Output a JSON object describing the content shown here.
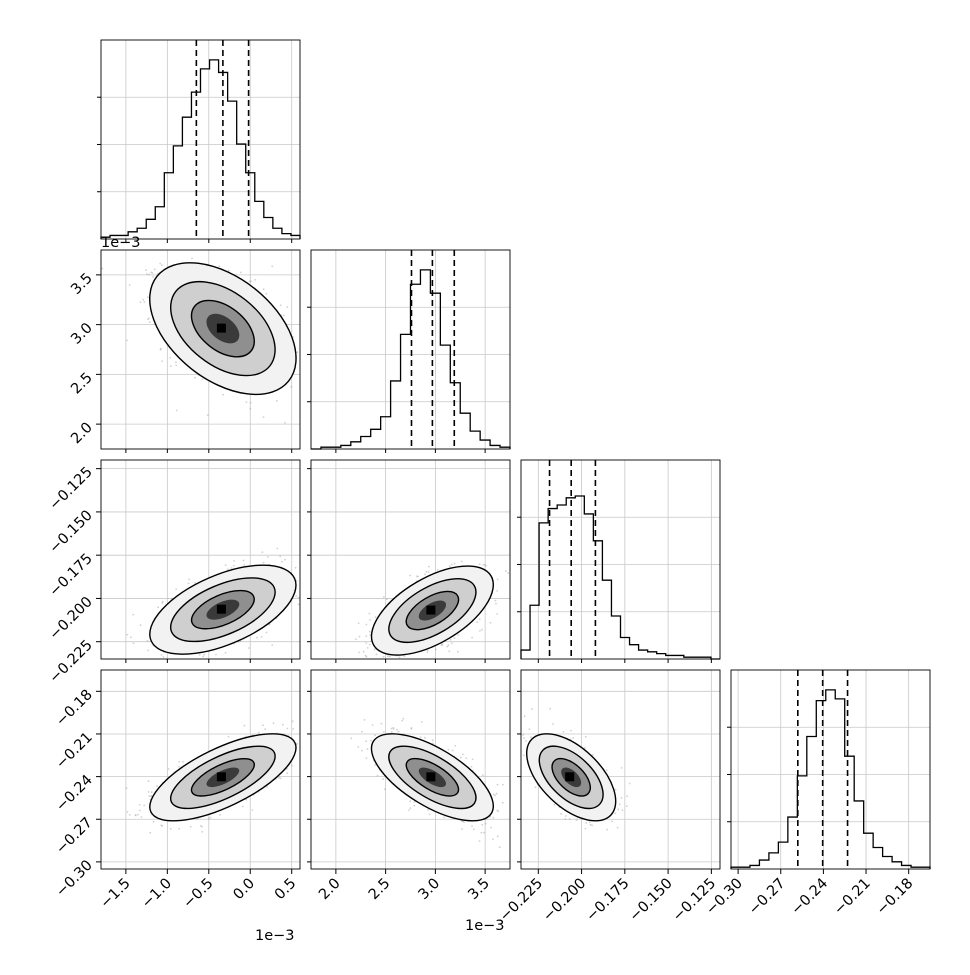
{
  "figure": {
    "type": "corner-plot"
  },
  "chart_data": {
    "type": "corner",
    "n_params": 4,
    "params": [
      {
        "range": [
          -0.0018,
          0.0006
        ],
        "ticks": [
          -0.0015,
          -0.001,
          -0.0005,
          0.0,
          0.0005
        ],
        "tick_labels": [
          "−1.5",
          "−1.0",
          "−0.5",
          "0.0",
          "0.5"
        ],
        "offset_label": "1e−3",
        "quantiles": [
          -0.00065,
          -0.00033,
          -2e-05
        ]
      },
      {
        "range": [
          0.00175,
          0.00375
        ],
        "ticks": [
          0.002,
          0.0025,
          0.003,
          0.0035
        ],
        "tick_labels": [
          "2.0",
          "2.5",
          "3.0",
          "3.5"
        ],
        "offset_label": "1e−3",
        "quantiles": [
          0.00276,
          0.00297,
          0.00319
        ]
      },
      {
        "range": [
          -0.235,
          -0.12
        ],
        "ticks": [
          -0.225,
          -0.2,
          -0.175,
          -0.15,
          -0.125
        ],
        "tick_labels": [
          "−0.225",
          "−0.200",
          "−0.175",
          "−0.150",
          "−0.125"
        ],
        "quantiles": [
          -0.2185,
          -0.206,
          -0.192
        ]
      },
      {
        "range": [
          -0.305,
          -0.165
        ],
        "ticks": [
          -0.3,
          -0.27,
          -0.24,
          -0.21,
          -0.18
        ],
        "tick_labels": [
          "−0.30",
          "−0.27",
          "−0.24",
          "−0.21",
          "−0.18"
        ],
        "quantiles": [
          -0.258,
          -0.2405,
          -0.223
        ]
      }
    ],
    "histograms": [
      [
        0.01,
        0.02,
        0.02,
        0.04,
        0.06,
        0.11,
        0.18,
        0.37,
        0.52,
        0.68,
        0.82,
        0.95,
        1.0,
        0.93,
        0.77,
        0.53,
        0.37,
        0.21,
        0.12,
        0.06,
        0.03,
        0.02
      ],
      [
        0.0,
        0.01,
        0.01,
        0.02,
        0.04,
        0.07,
        0.11,
        0.18,
        0.38,
        0.64,
        0.92,
        1.0,
        0.87,
        0.58,
        0.37,
        0.2,
        0.1,
        0.05,
        0.02,
        0.01
      ],
      [
        0.05,
        0.3,
        0.76,
        0.84,
        0.86,
        0.9,
        0.91,
        0.81,
        0.66,
        0.44,
        0.24,
        0.12,
        0.08,
        0.05,
        0.04,
        0.03,
        0.02,
        0.02,
        0.01,
        0.01,
        0.01,
        0.0
      ],
      [
        0.01,
        0.01,
        0.02,
        0.05,
        0.09,
        0.15,
        0.29,
        0.52,
        0.74,
        0.94,
        1.0,
        0.95,
        0.63,
        0.38,
        0.2,
        0.12,
        0.07,
        0.04,
        0.02,
        0.01,
        0.01
      ]
    ],
    "pairs": [
      {
        "row": 1,
        "col": 0,
        "center": [
          -0.00033,
          0.00296
        ],
        "sd": [
          0.00036,
          0.00027
        ],
        "rho": -0.45
      },
      {
        "row": 2,
        "col": 0,
        "center": [
          -0.00033,
          -0.2065
        ],
        "sd": [
          0.00036,
          0.0105
        ],
        "rho": 0.55
      },
      {
        "row": 2,
        "col": 1,
        "center": [
          0.00297,
          -0.207
        ],
        "sd": [
          0.00025,
          0.0105
        ],
        "rho": 0.58
      },
      {
        "row": 3,
        "col": 0,
        "center": [
          -0.00033,
          -0.2405
        ],
        "sd": [
          0.00036,
          0.0125
        ],
        "rho": 0.68
      },
      {
        "row": 3,
        "col": 1,
        "center": [
          0.00297,
          -0.2405
        ],
        "sd": [
          0.00025,
          0.0125
        ],
        "rho": -0.66
      },
      {
        "row": 3,
        "col": 2,
        "center": [
          -0.206,
          -0.2405
        ],
        "sd": [
          0.0105,
          0.0125
        ],
        "rho": -0.55
      }
    ],
    "grid": true,
    "contour_levels": 3
  }
}
